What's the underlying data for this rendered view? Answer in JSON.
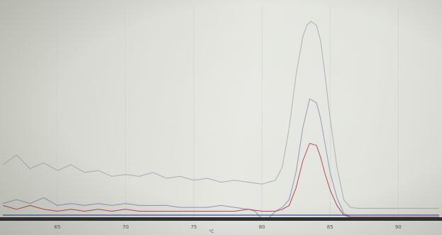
{
  "chart_data": {
    "type": "line",
    "title": "",
    "xlabel": "°C",
    "ylabel": "",
    "xlim": [
      61,
      93
    ],
    "ylim": [
      0,
      1
    ],
    "grid": true,
    "x_ticks": [
      "65",
      "70",
      "75",
      "80",
      "85",
      "90"
    ],
    "colors": {
      "gray_series": "#a8aeb2",
      "blue_series": "#8d96b4",
      "red_series": "#b24a52",
      "baseline": "#4250a8"
    },
    "series": [
      {
        "color": "gray_series",
        "x": [
          61,
          62,
          63,
          64,
          65,
          66,
          67,
          68,
          69,
          70,
          71,
          72,
          73,
          74,
          75,
          76,
          77,
          78,
          79,
          80,
          81,
          81.5,
          82,
          82.5,
          83,
          83.3,
          83.6,
          84,
          84.3,
          84.6,
          85,
          85.5,
          86,
          86.5,
          87,
          88,
          89,
          90,
          91,
          92,
          93
        ],
        "y": [
          0.26,
          0.31,
          0.24,
          0.27,
          0.23,
          0.26,
          0.22,
          0.23,
          0.2,
          0.21,
          0.2,
          0.22,
          0.19,
          0.2,
          0.18,
          0.19,
          0.17,
          0.18,
          0.17,
          0.16,
          0.18,
          0.25,
          0.45,
          0.72,
          0.92,
          0.98,
          1.0,
          0.98,
          0.9,
          0.74,
          0.5,
          0.25,
          0.08,
          0.04,
          0.035,
          0.035,
          0.035,
          0.035,
          0.035,
          0.035,
          0.035
        ]
      },
      {
        "color": "blue_series",
        "x": [
          61,
          62,
          63,
          64,
          65,
          66,
          67,
          68,
          69,
          70,
          71,
          72,
          73,
          74,
          75,
          76,
          77,
          78,
          79,
          79.5,
          80,
          80.5,
          81,
          81.5,
          82,
          82.5,
          83,
          83.5,
          84,
          84.3,
          84.6,
          85,
          85.5,
          86,
          86.5,
          87,
          88,
          89,
          90,
          91,
          92,
          93
        ],
        "y": [
          0.06,
          0.08,
          0.06,
          0.09,
          0.05,
          0.06,
          0.05,
          0.06,
          0.05,
          0.06,
          0.05,
          0.05,
          0.05,
          0.04,
          0.04,
          0.04,
          0.05,
          0.04,
          0.03,
          0.02,
          -0.02,
          -0.015,
          0.02,
          0.04,
          0.08,
          0.22,
          0.45,
          0.6,
          0.58,
          0.5,
          0.38,
          0.22,
          0.09,
          0.01,
          -0.01,
          -0.01,
          -0.01,
          -0.01,
          -0.01,
          -0.01,
          -0.01,
          -0.01
        ]
      },
      {
        "color": "red_series",
        "x": [
          61,
          62,
          63,
          64,
          65,
          66,
          67,
          68,
          69,
          70,
          71,
          72,
          73,
          74,
          75,
          76,
          77,
          78,
          79,
          80,
          80.5,
          81,
          81.5,
          82,
          82.5,
          83,
          83.5,
          84,
          84.3,
          84.6,
          85,
          85.5,
          86,
          86.5,
          87,
          88,
          89,
          90,
          91,
          92,
          93
        ],
        "y": [
          0.05,
          0.03,
          0.05,
          0.03,
          0.02,
          0.03,
          0.02,
          0.03,
          0.02,
          0.03,
          0.02,
          0.02,
          0.02,
          0.02,
          0.02,
          0.02,
          0.02,
          0.02,
          0.03,
          0.02,
          0.02,
          0.02,
          0.03,
          0.05,
          0.14,
          0.28,
          0.37,
          0.36,
          0.3,
          0.22,
          0.13,
          0.05,
          0.0,
          -0.01,
          -0.01,
          -0.01,
          -0.01,
          -0.01,
          -0.01,
          -0.01,
          -0.01
        ]
      },
      {
        "color": "baseline",
        "x": [
          61,
          93
        ],
        "y": [
          0.0,
          0.0
        ]
      }
    ]
  }
}
